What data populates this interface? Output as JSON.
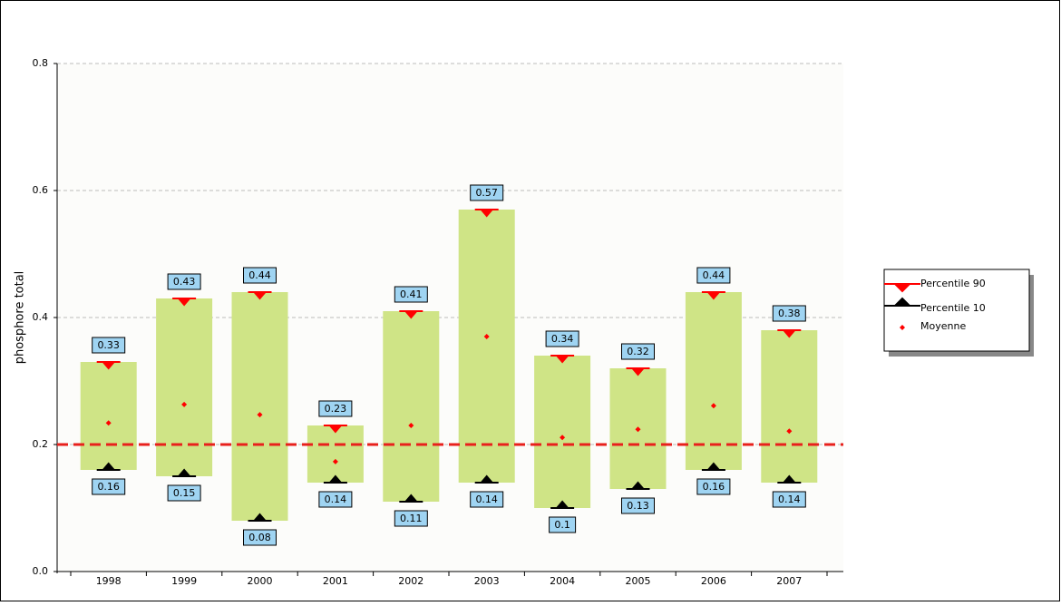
{
  "chart_data": {
    "type": "bar",
    "ylabel": "phosphore total",
    "categories": [
      "1998",
      "1999",
      "2000",
      "2001",
      "2002",
      "2003",
      "2004",
      "2005",
      "2006",
      "2007"
    ],
    "series": [
      {
        "name": "Percentile 90",
        "color": "#ff0000",
        "values": [
          0.33,
          0.43,
          0.44,
          0.23,
          0.41,
          0.57,
          0.34,
          0.32,
          0.44,
          0.38
        ]
      },
      {
        "name": "Percentile 10",
        "color": "#000000",
        "values": [
          0.16,
          0.15,
          0.08,
          0.14,
          0.11,
          0.14,
          0.1,
          0.13,
          0.16,
          0.14
        ]
      },
      {
        "name": "Moyenne",
        "color": "#ff0000",
        "values": [
          0.234,
          0.263,
          0.247,
          0.173,
          0.23,
          0.37,
          0.211,
          0.224,
          0.261,
          0.221
        ]
      }
    ],
    "bar_color": "#cfe486",
    "reference_line": 0.2,
    "reference_color": "#e8201c",
    "ylim": [
      0,
      0.8
    ],
    "yticks": [
      {
        "value": 0,
        "label": "0.0"
      },
      {
        "value": 0.2,
        "label": "0.2"
      },
      {
        "value": 0.4,
        "label": "0.4"
      },
      {
        "value": 0.6,
        "label": "0.6"
      },
      {
        "value": 0.8,
        "label": "0.8"
      }
    ],
    "grid": true
  }
}
